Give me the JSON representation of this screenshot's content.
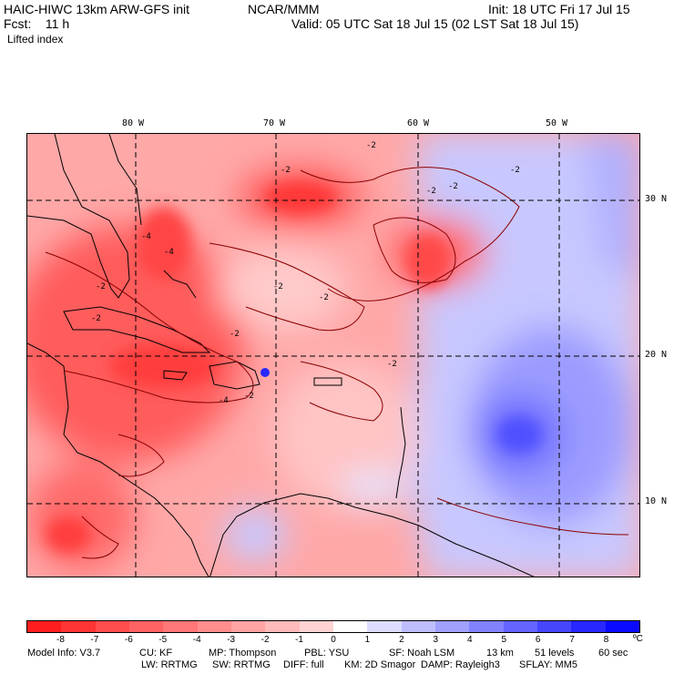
{
  "header": {
    "model": "HAIC-HIWC 13km ARW-GFS init",
    "org": "NCAR/MMM",
    "init": "Init: 18 UTC Fri 17 Jul 15",
    "fcst": "Fcst:    11 h",
    "valid": "Valid: 05 UTC Sat 18 Jul 15 (02 LST Sat 18 Jul 15)",
    "field": "Lifted index"
  },
  "map": {
    "lon_labels": [
      "80 W",
      "70 W",
      "60 W",
      "50 W"
    ],
    "lat_labels": [
      "30 N",
      "20 N",
      "10 N"
    ],
    "contour_labels": [
      "-2",
      "-2",
      "-2",
      "-2",
      "-2",
      "-2",
      "-2",
      "-2",
      "-2",
      "-2",
      "-4",
      "-4",
      "-4",
      "-2",
      "-2"
    ],
    "colors": {
      "land_outline": "#000000",
      "contour": "#8b0000",
      "grid": "#000000"
    }
  },
  "colorbar": {
    "labels": [
      "-8",
      "-7",
      "-6",
      "-5",
      "-4",
      "-3",
      "-2",
      "-1",
      "0",
      "1",
      "2",
      "3",
      "4",
      "5",
      "6",
      "7",
      "8"
    ],
    "unit": "ºC",
    "colors": [
      "#ff1e1e",
      "#ff3535",
      "#ff4c4c",
      "#ff6262",
      "#ff7777",
      "#ff8d8d",
      "#ffa3a3",
      "#ffbaba",
      "#ffd3d3",
      "#ffffff",
      "#dcdcff",
      "#bebeff",
      "#a0a0ff",
      "#8282ff",
      "#6464ff",
      "#4646ff",
      "#2828ff",
      "#0a0aff"
    ]
  },
  "footer": {
    "line1": [
      "Model Info: V3.7",
      "CU: KF",
      "MP: Thompson",
      "PBL: YSU",
      "SF: Noah LSM",
      "13 km",
      "51 levels",
      "60 sec"
    ],
    "line2": [
      "LW: RRTMG",
      "SW: RRTMG",
      "DIFF: full",
      "KM: 2D Smagor",
      "DAMP: Rayleigh3",
      "SFLAY: MM5"
    ]
  }
}
